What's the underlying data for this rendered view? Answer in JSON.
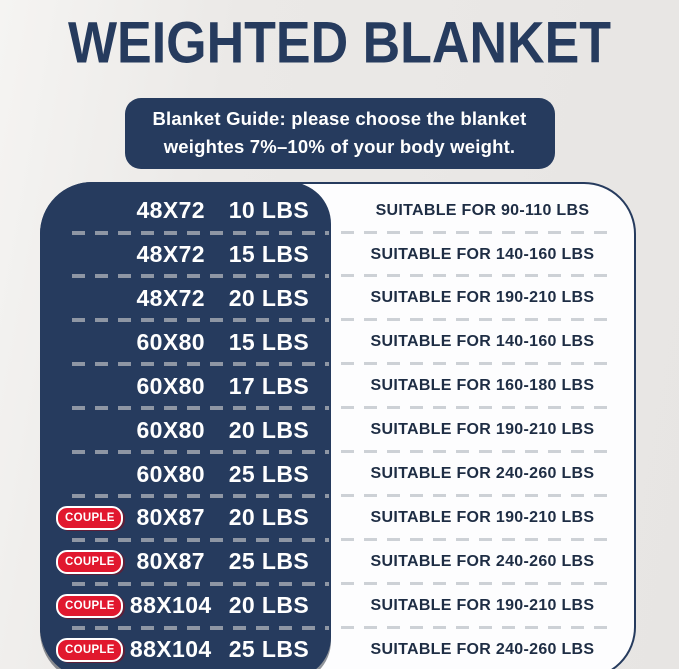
{
  "title": "WEIGHTED BLANKET",
  "banner": {
    "line1": "Blanket Guide: please choose the blanket",
    "line2": "weightes 7%–10% of your body weight."
  },
  "badge_label": "COUPLE",
  "colors": {
    "navy": "#263b5e",
    "red": "#e1182e",
    "suitable_text": "#1e2d44",
    "dash_on_navy": "#8e96a4",
    "dash_on_white": "#cdd1d6"
  },
  "table": {
    "rows": [
      {
        "couple": false,
        "size": "48X72",
        "weight": "10 LBS",
        "suitable": "SUITABLE FOR 90-110 LBS"
      },
      {
        "couple": false,
        "size": "48X72",
        "weight": "15 LBS",
        "suitable": "SUITABLE FOR 140-160 LBS"
      },
      {
        "couple": false,
        "size": "48X72",
        "weight": "20 LBS",
        "suitable": "SUITABLE FOR 190-210 LBS"
      },
      {
        "couple": false,
        "size": "60X80",
        "weight": "15 LBS",
        "suitable": "SUITABLE FOR 140-160 LBS"
      },
      {
        "couple": false,
        "size": "60X80",
        "weight": "17 LBS",
        "suitable": "SUITABLE FOR 160-180 LBS"
      },
      {
        "couple": false,
        "size": "60X80",
        "weight": "20 LBS",
        "suitable": "SUITABLE FOR 190-210 LBS"
      },
      {
        "couple": false,
        "size": "60X80",
        "weight": "25 LBS",
        "suitable": "SUITABLE FOR 240-260 LBS"
      },
      {
        "couple": true,
        "size": "80X87",
        "weight": "20 LBS",
        "suitable": "SUITABLE FOR 190-210 LBS"
      },
      {
        "couple": true,
        "size": "80X87",
        "weight": "25 LBS",
        "suitable": "SUITABLE FOR 240-260 LBS"
      },
      {
        "couple": true,
        "size": "88X104",
        "weight": "20 LBS",
        "suitable": "SUITABLE FOR 190-210 LBS"
      },
      {
        "couple": true,
        "size": "88X104",
        "weight": "25 LBS",
        "suitable": "SUITABLE FOR 240-260 LBS"
      }
    ]
  }
}
